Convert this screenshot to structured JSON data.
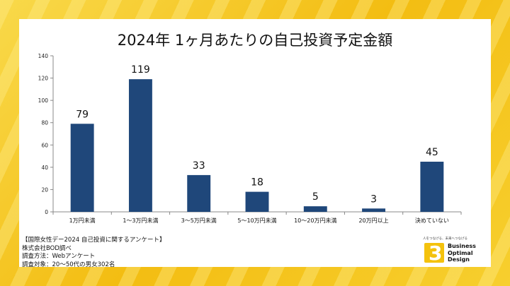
{
  "chart_data": {
    "type": "bar",
    "title": "2024年 1ヶ月あたりの自己投資予定金額",
    "categories": [
      "1万円未満",
      "1〜3万円未満",
      "3〜5万円未満",
      "5〜10万円未満",
      "10〜20万円未満",
      "20万円以上",
      "決めていない"
    ],
    "values": [
      79,
      119,
      33,
      18,
      5,
      3,
      45
    ],
    "ylim": [
      0,
      140
    ],
    "yticks": [
      0,
      20,
      40,
      60,
      80,
      100,
      120,
      140
    ],
    "grid": false,
    "bar_color": "#1f477a"
  },
  "notes": [
    "【国際女性デー2024 自己投資に関するアンケート】",
    "株式会社BOD調べ",
    "調査方法：Webアンケート",
    "調査対象：20〜50代の男女302名"
  ],
  "logo": {
    "tagline": "人をつなげる、未来へつなげる",
    "mark": "3",
    "line1": "Business",
    "line2": "Optimal",
    "line3": "Design"
  }
}
